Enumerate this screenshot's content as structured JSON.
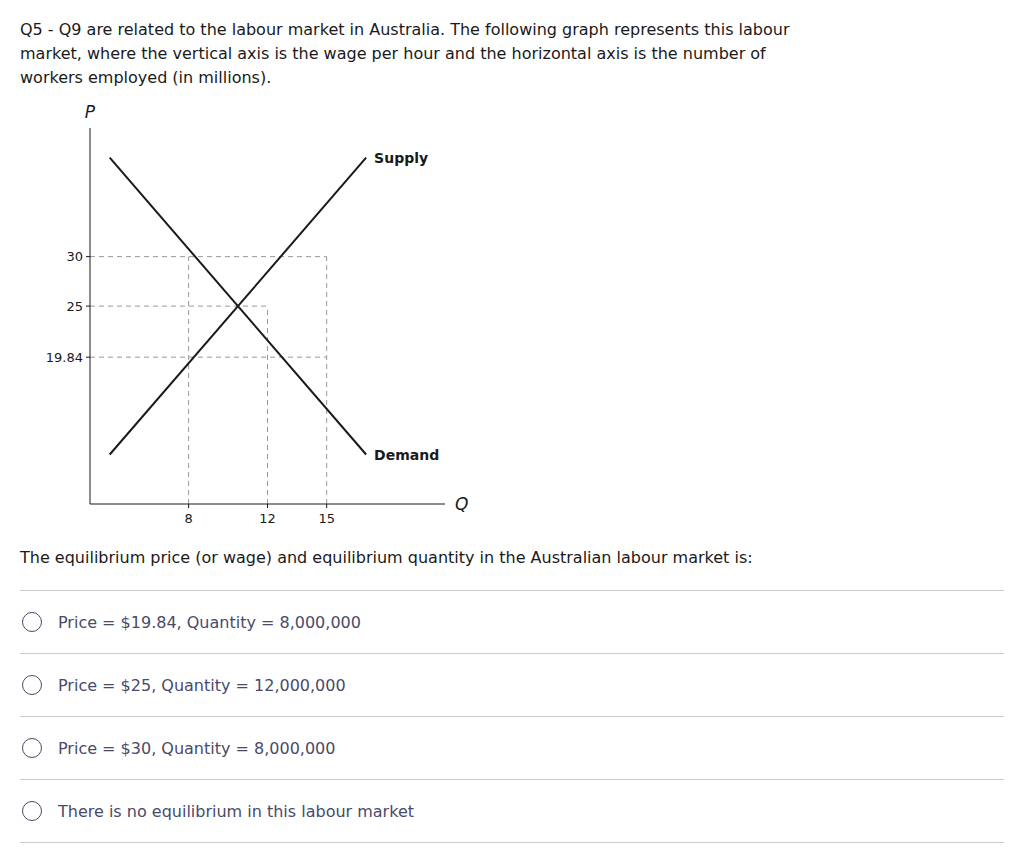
{
  "header_text": "Q5 - Q9 are related to the labour market in Australia. The following graph represents this labour\nmarket, where the vertical axis is the wage per hour and the horizontal axis is the number of\nworkers employed (in millions).",
  "question_text": "The equilibrium price (or wage) and equilibrium quantity in the Australian labour market is:",
  "options": [
    "Price = $19.84, Quantity = 8,000,000",
    "Price = $25, Quantity = 12,000,000",
    "Price = $30, Quantity = 8,000,000",
    "There is no equilibrium in this labour market"
  ],
  "chart_data": {
    "type": "line",
    "xlabel": "Q",
    "ylabel": "P",
    "series": [
      {
        "name": "Supply",
        "color": "#1a1a1a",
        "x": [
          4,
          17
        ],
        "values": [
          10,
          40
        ]
      },
      {
        "name": "Demand",
        "color": "#1a1a1a",
        "x": [
          4,
          17
        ],
        "values": [
          40,
          10
        ]
      }
    ],
    "h_lines": [
      {
        "y": 30,
        "x_end": 15
      },
      {
        "y": 19.84,
        "x_end": 15
      },
      {
        "y": 25,
        "x_end": 12
      }
    ],
    "v_lines": [
      {
        "x": 8,
        "y_end": 30
      },
      {
        "x": 12,
        "y_end": 25
      },
      {
        "x": 15,
        "y_end": 30
      }
    ],
    "reference_color": "#999999",
    "line_style": "dashed",
    "xlim": [
      3,
      21
    ],
    "ylim": [
      5,
      43
    ],
    "xticks": [
      8,
      12,
      15
    ],
    "yticks": [
      19.84,
      25,
      30
    ],
    "grid": false
  }
}
